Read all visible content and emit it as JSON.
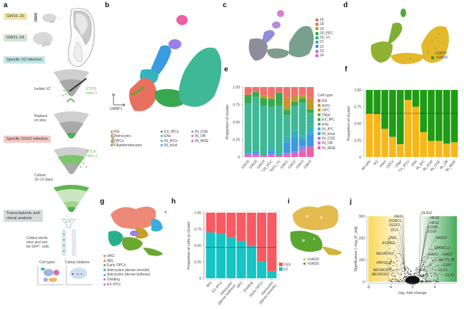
{
  "panel_labels": [
    "a",
    "b",
    "c",
    "d",
    "e",
    "f",
    "g",
    "h",
    "i",
    "j"
  ],
  "panel_a": {
    "boxes": {
      "gw_early": "GW16–20",
      "gw_late": "GW21–24",
      "vz_infection": "Specific VZ infection",
      "osvz_infection": "Specific OSVZ infection",
      "analysis": "Transcriptomic and\nclonal analysis"
    },
    "steps": {
      "isolate": "Isolate VZ",
      "stick1": "STICR\nindex 1",
      "replace": "Replace\non slice",
      "stick2": "STICR\nindex 2",
      "culture": "Culture\n10–12 days",
      "collect": "Collect whole\nslice and sort\nfor GFP⁺ cells",
      "cell_types": "Cell types",
      "clonal_relations": "Clonal relations"
    },
    "colors": {
      "gw_early": "#f6e6a6",
      "gw_late": "#d4e3d0",
      "vz": "#bfe4e4",
      "osvz": "#f4c9c6",
      "analysis": "#d9dadb",
      "stick": "#6cbf5a"
    }
  },
  "panel_b": {
    "axis_x": "UMAP1",
    "axis_y": "UMAP2",
    "legend": [
      {
        "label": "RG",
        "color": "#e8705e"
      },
      {
        "label": "Astrocytes",
        "color": "#d98a2b"
      },
      {
        "label": "OPCs",
        "color": "#b3a12a"
      },
      {
        "label": "Oligodendrocytes",
        "color": "#6aa62d"
      },
      {
        "label": "EX_IPCs",
        "color": "#38a850"
      },
      {
        "label": "ENs",
        "color": "#3fb896"
      },
      {
        "label": "IN_IPCs",
        "color": "#34b4c0"
      },
      {
        "label": "IN_local",
        "color": "#3b9be0"
      },
      {
        "label": "IN_CGE",
        "color": "#9d7ee8"
      },
      {
        "label": "IN_OB",
        "color": "#e060d0"
      },
      {
        "label": "IN_MGE",
        "color": "#ef5ea8"
      }
    ]
  },
  "panel_c": {
    "legend": [
      {
        "label": "16",
        "color": "#ef6f6c"
      },
      {
        "label": "18",
        "color": "#e07b22"
      },
      {
        "label": "19",
        "color": "#a9a51f"
      },
      {
        "label": "20_PFC",
        "color": "#3aa63b"
      },
      {
        "label": "20_V1",
        "color": "#22b28a"
      },
      {
        "label": "21",
        "color": "#25b5c5"
      },
      {
        "label": "22",
        "color": "#3f8de0"
      },
      {
        "label": "23",
        "color": "#a57ce9"
      },
      {
        "label": "24",
        "color": "#e55fc9"
      }
    ]
  },
  "panel_d": {
    "legend": [
      {
        "label": "<GW20",
        "color": "#f2b61c"
      },
      {
        "label": ">GW20",
        "color": "#2f9a2a"
      }
    ]
  },
  "panel_g": {
    "legend": [
      {
        "label": "oRG",
        "color": "#ec7b68"
      },
      {
        "label": "tRG",
        "color": "#c7a024"
      },
      {
        "label": "Early OPCs",
        "color": "#6aa82e"
      },
      {
        "label": "Astrocytes (dense smooth)",
        "color": "#27b08a"
      },
      {
        "label": "Astrocytes (dense bulbous)",
        "color": "#36aee0"
      },
      {
        "label": "Dividing",
        "color": "#a07de8"
      },
      {
        "label": "EX IPCs",
        "color": "#e960d0"
      }
    ]
  },
  "panel_i": {
    "legend": [
      {
        "label": "<GW20",
        "color": "#f2b61c"
      },
      {
        "label": ">GW20",
        "color": "#2f9a2a"
      }
    ]
  },
  "chart_data": [
    {
      "id": "e",
      "type": "bar",
      "stacked": true,
      "title": "",
      "xlabel": "",
      "ylabel": "Proportion of cluster",
      "ylim": [
        0,
        1
      ],
      "yticks": [
        "0",
        "0.25",
        "0.50",
        "0.75",
        "1.00"
      ],
      "legend_title": "Cell type",
      "legend_position": "right",
      "categories": [
        "GW16",
        "GW18",
        "GW19",
        "GW20_PFC",
        "GW20_V1",
        "GW21",
        "GW22",
        "GW23",
        "GW24"
      ],
      "series": [
        {
          "name": "IN_MGE",
          "color": "#ef5ea8",
          "values": [
            0.02,
            0.02,
            0.01,
            0.02,
            0.01,
            0.03,
            0.03,
            0.07,
            0.15
          ]
        },
        {
          "name": "IN_OB",
          "color": "#e060d0",
          "values": [
            0.01,
            0.01,
            0.0,
            0.01,
            0.0,
            0.01,
            0.02,
            0.02,
            0.0
          ]
        },
        {
          "name": "IN_CGE",
          "color": "#9d7ee8",
          "values": [
            0.01,
            0.02,
            0.01,
            0.02,
            0.01,
            0.02,
            0.03,
            0.06,
            0.0
          ]
        },
        {
          "name": "IN_local",
          "color": "#3b9be0",
          "values": [
            0.01,
            0.02,
            0.0,
            0.04,
            0.0,
            0.15,
            0.2,
            0.1,
            0.18
          ]
        },
        {
          "name": "IN_IPC",
          "color": "#34b4c0",
          "values": [
            0.01,
            0.02,
            0.0,
            0.04,
            0.03,
            0.08,
            0.1,
            0.05,
            0.1
          ]
        },
        {
          "name": "ENs",
          "color": "#3fb896",
          "values": [
            0.71,
            0.77,
            0.71,
            0.59,
            0.69,
            0.31,
            0.35,
            0.48,
            0.2
          ]
        },
        {
          "name": "EX_IPC",
          "color": "#38a850",
          "values": [
            0.12,
            0.07,
            0.11,
            0.11,
            0.18,
            0.07,
            0.06,
            0.06,
            0.05
          ]
        },
        {
          "name": "Oligo",
          "color": "#6aa62d",
          "values": [
            0.0,
            0.0,
            0.0,
            0.0,
            0.0,
            0.01,
            0.0,
            0.0,
            0.0
          ]
        },
        {
          "name": "OPC",
          "color": "#b3a12a",
          "values": [
            0.0,
            0.0,
            0.04,
            0.03,
            0.0,
            0.07,
            0.08,
            0.04,
            0.1
          ]
        },
        {
          "name": "Astro",
          "color": "#d98a2b",
          "values": [
            0.0,
            0.0,
            0.0,
            0.0,
            0.0,
            0.1,
            0.0,
            0.0,
            0.06
          ]
        },
        {
          "name": "RG",
          "color": "#f0716a",
          "values": [
            0.11,
            0.07,
            0.12,
            0.14,
            0.08,
            0.15,
            0.13,
            0.12,
            0.16
          ]
        }
      ]
    },
    {
      "id": "f",
      "type": "bar",
      "stacked": true,
      "ylabel": "Proportion of cluster",
      "ylim": [
        0,
        1
      ],
      "yticks": [
        "0",
        "0.25",
        "0.50",
        "0.75",
        "1.00"
      ],
      "reference_line": 0.65,
      "categories": [
        "All cells",
        "RG",
        "Astro",
        "OPCs",
        "Oligo",
        "EX_IPCs",
        "ENs",
        "IN_IPC",
        "IN_local",
        "IN_CGE",
        "IN_OB",
        "IN_MGE"
      ],
      "series": [
        {
          "name": "<GW20",
          "color": "#f7b716",
          "values": [
            0.65,
            0.64,
            0.42,
            0.3,
            0.19,
            0.85,
            0.75,
            0.37,
            0.24,
            0.24,
            0.2,
            0.22
          ]
        },
        {
          "name": ">GW20",
          "color": "#1e9c14",
          "values": [
            0.35,
            0.36,
            0.58,
            0.7,
            0.81,
            0.15,
            0.25,
            0.63,
            0.76,
            0.76,
            0.8,
            0.78
          ]
        }
      ]
    },
    {
      "id": "h",
      "type": "bar",
      "stacked": true,
      "ylabel": "Proportion of cells in cluster",
      "ylim": [
        0,
        1
      ],
      "yticks": [
        "0",
        "0.25",
        "0.50",
        "0.75",
        "1.00"
      ],
      "reference_line": 0.47,
      "legend_position": "right",
      "categories": [
        "tRG",
        "EX IPCs",
        "Astrocytes\n(dense bulbous)",
        "oRG",
        "Dividing",
        "Early OPCs",
        "Astrocytes\n(dense smooth)"
      ],
      "series": [
        {
          "name": "VZ",
          "color": "#16c4c4",
          "values": [
            0.7,
            0.68,
            0.63,
            0.57,
            0.49,
            0.26,
            0.1
          ]
        },
        {
          "name": "OSVZ",
          "color": "#f85a63",
          "values": [
            0.3,
            0.32,
            0.37,
            0.43,
            0.51,
            0.74,
            0.9
          ]
        }
      ]
    },
    {
      "id": "j",
      "type": "scatter",
      "subtype": "volcano",
      "xlabel": "log₂ fold change",
      "ylabel": "Significance (−log₁₀P_adj)",
      "xlim": [
        -8,
        8
      ],
      "ylim": [
        0,
        300
      ],
      "xticks": [
        "-8",
        "-4",
        "0",
        "4"
      ],
      "yticks": [
        "0",
        "100",
        "200",
        "300"
      ],
      "left_genes": [
        "PAX6",
        "ROBO1",
        "FEZF2",
        "DCX",
        "ZMI1",
        "EOMES",
        "NEUROG2",
        "PPP1R17",
        "NEUROD6",
        "NEUROD2"
      ],
      "right_genes": [
        "OLIG2",
        "HES5",
        "HES1",
        "S100B",
        "SOX9",
        "NR2F2",
        "SPARCL1",
        "GAD1",
        "GAD2",
        "METTL7B",
        "GJA1",
        "DLX1",
        "DLX2",
        "AQP4"
      ],
      "left_color": "#f9d95c",
      "right_color": "#49a95a"
    }
  ]
}
